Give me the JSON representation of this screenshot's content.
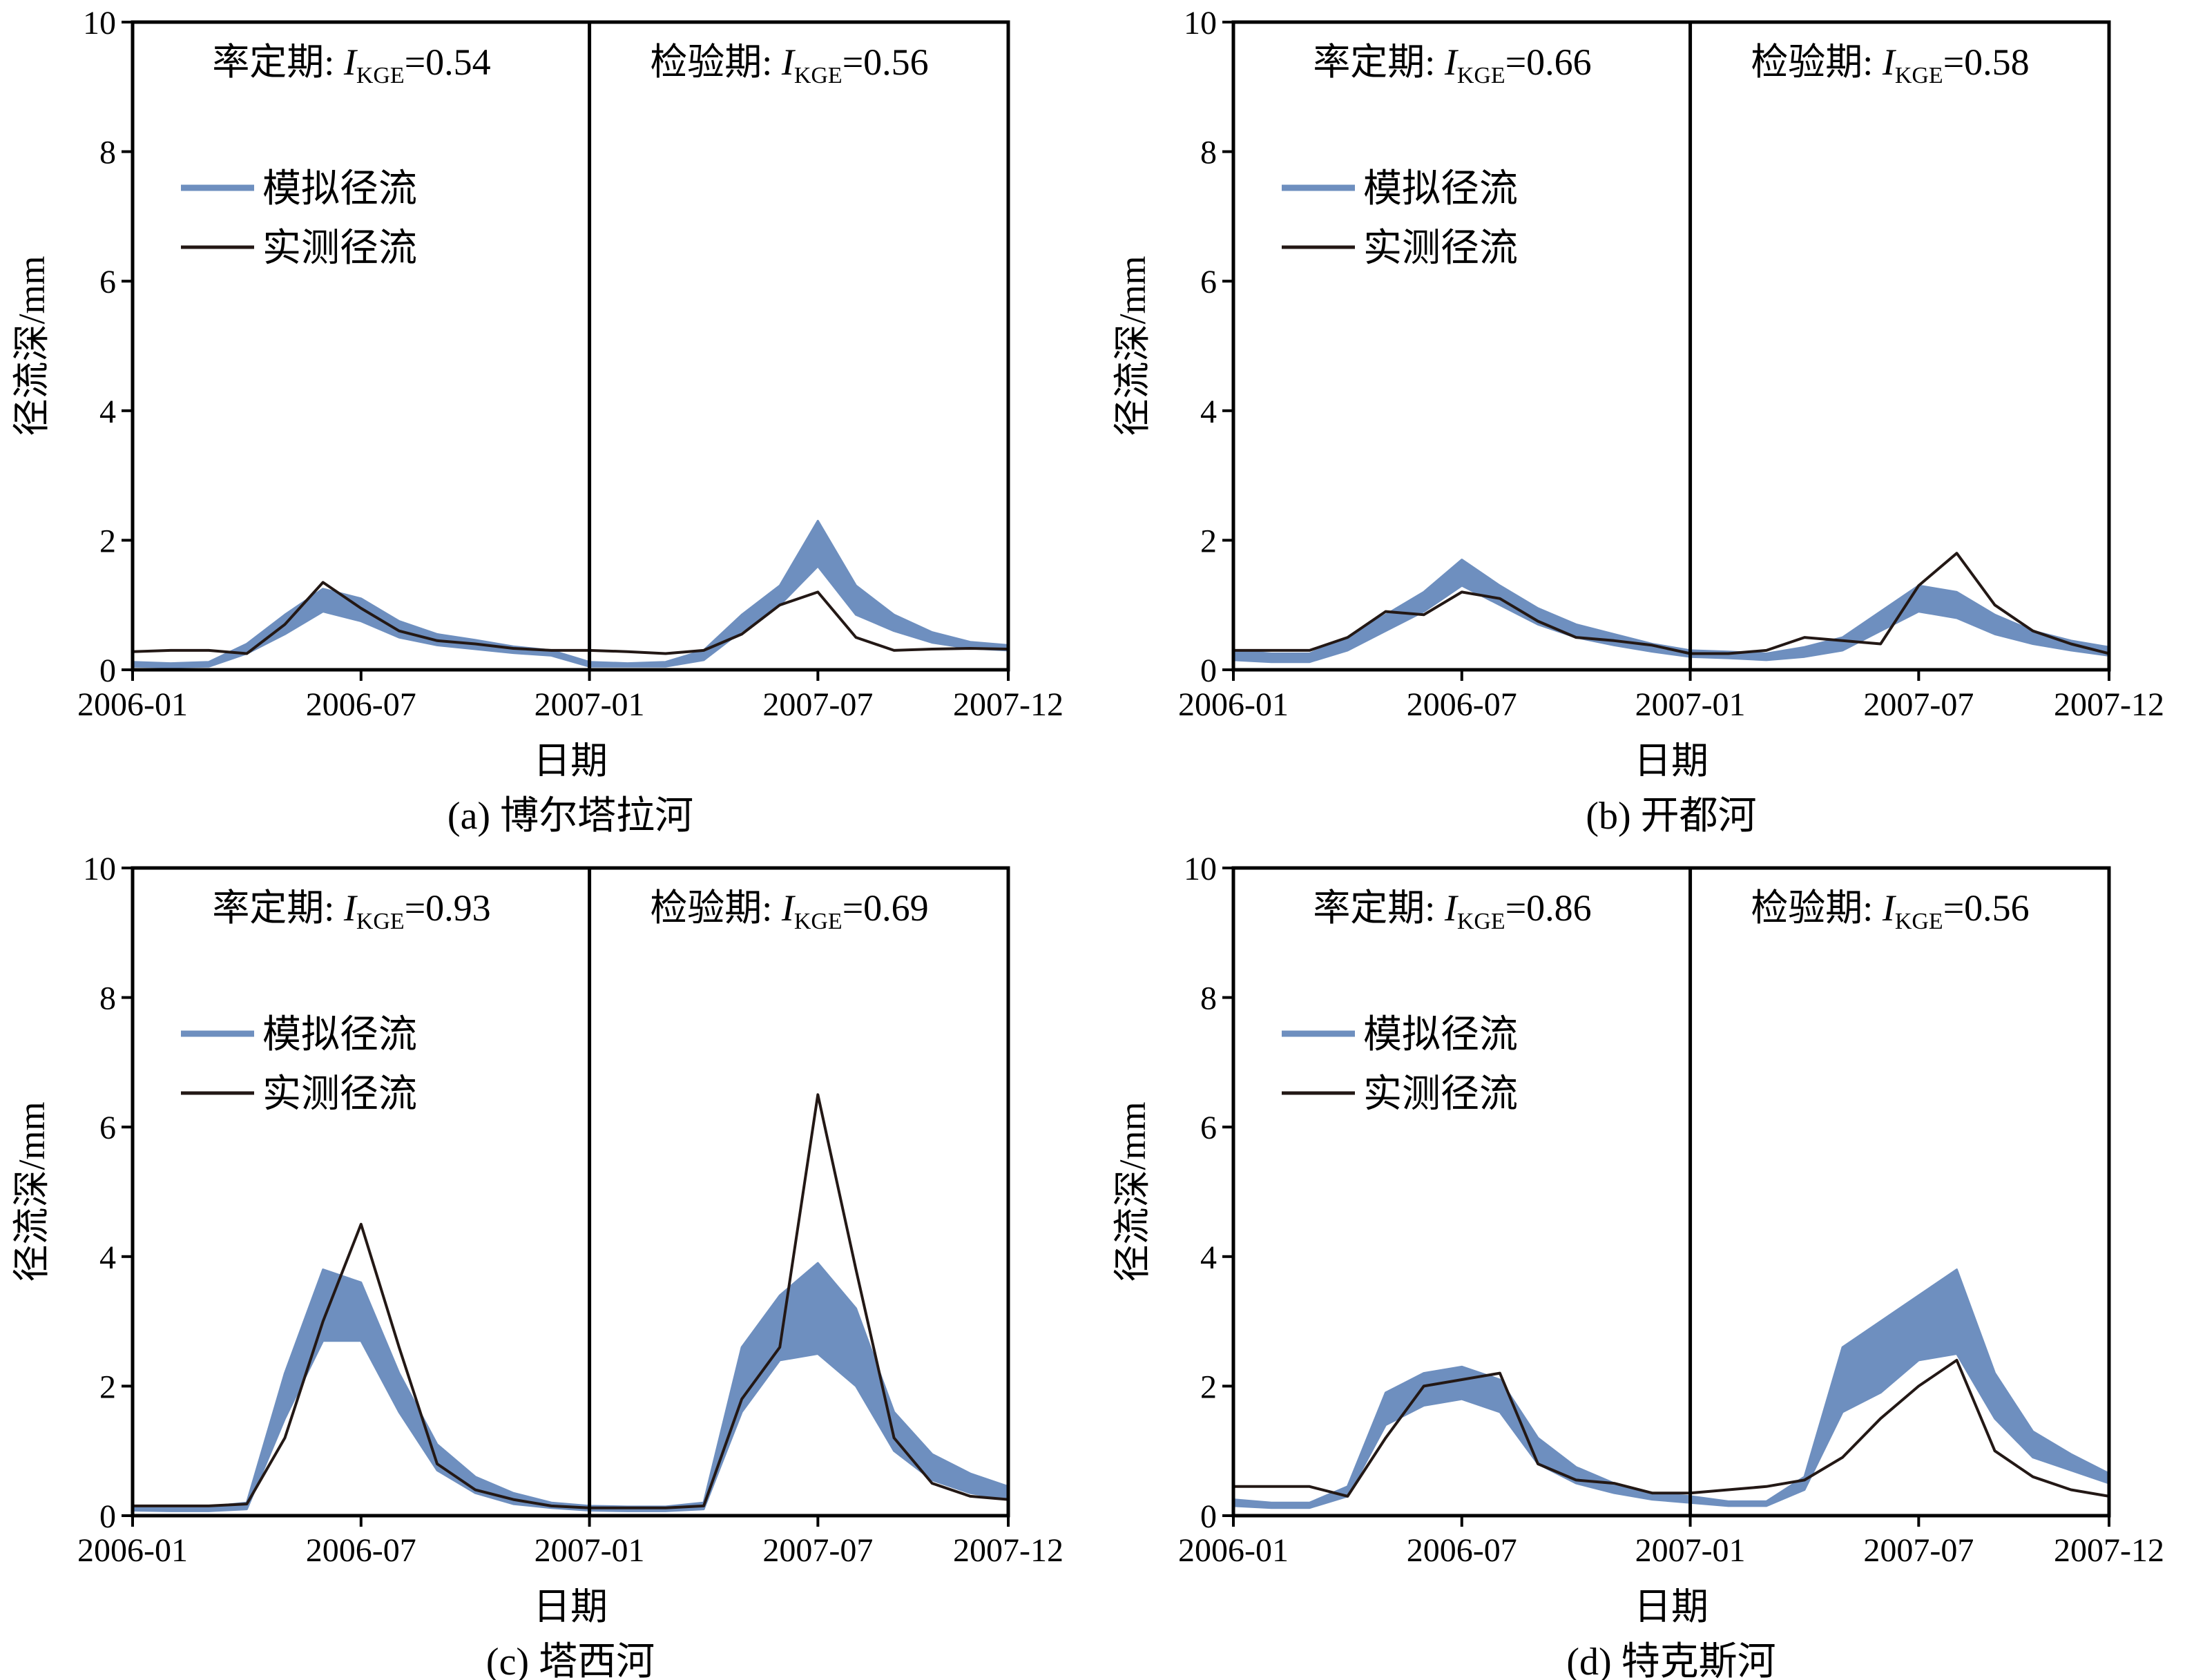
{
  "colors": {
    "simulated": "#6e8fbf",
    "observed": "#231815",
    "axis": "#000000"
  },
  "chart_data": [
    {
      "type": "line",
      "caption": "(a) 博尔塔拉河",
      "xlabel": "日期",
      "ylabel": "径流深/mm",
      "xticks": [
        "2006-01",
        "2006-07",
        "2007-01",
        "2007-07",
        "2007-12"
      ],
      "ylim": [
        0,
        10
      ],
      "yticks": [
        "0",
        "2",
        "4",
        "6",
        "8",
        "10"
      ],
      "periods": [
        {
          "label": "率定期: ",
          "metric_main": "I",
          "metric_sub": "KGE",
          "value": "=0.54"
        },
        {
          "label": "检验期: ",
          "metric_main": "I",
          "metric_sub": "KGE",
          "value": "=0.56"
        }
      ],
      "legend": [
        {
          "name": "模拟径流",
          "key": "simulated"
        },
        {
          "name": "实测径流",
          "key": "observed"
        }
      ],
      "x": [
        0,
        1,
        2,
        3,
        4,
        5,
        6,
        7,
        8,
        9,
        10,
        11,
        12,
        13,
        14,
        15,
        16,
        17,
        18,
        19,
        20,
        21,
        22,
        23
      ],
      "series": [
        {
          "key": "simulated",
          "band": true,
          "lower": [
            0.05,
            0.04,
            0.05,
            0.25,
            0.55,
            0.9,
            0.75,
            0.5,
            0.38,
            0.32,
            0.26,
            0.22,
            0.05,
            0.05,
            0.05,
            0.15,
            0.6,
            1.0,
            1.6,
            0.85,
            0.6,
            0.42,
            0.33,
            0.3
          ],
          "upper": [
            0.12,
            0.1,
            0.12,
            0.4,
            0.85,
            1.25,
            1.1,
            0.75,
            0.55,
            0.46,
            0.36,
            0.3,
            0.12,
            0.1,
            0.12,
            0.3,
            0.85,
            1.3,
            2.3,
            1.3,
            0.85,
            0.58,
            0.43,
            0.38
          ]
        },
        {
          "key": "observed",
          "values": [
            0.28,
            0.3,
            0.3,
            0.25,
            0.7,
            1.35,
            0.95,
            0.6,
            0.45,
            0.4,
            0.33,
            0.3,
            0.3,
            0.28,
            0.25,
            0.3,
            0.55,
            1.0,
            1.2,
            0.5,
            0.3,
            0.32,
            0.33,
            0.32
          ]
        }
      ]
    },
    {
      "type": "line",
      "caption": "(b) 开都河",
      "xlabel": "日期",
      "ylabel": "径流深/mm",
      "xticks": [
        "2006-01",
        "2006-07",
        "2007-01",
        "2007-07",
        "2007-12"
      ],
      "ylim": [
        0,
        10
      ],
      "yticks": [
        "0",
        "2",
        "4",
        "6",
        "8",
        "10"
      ],
      "periods": [
        {
          "label": "率定期: ",
          "metric_main": "I",
          "metric_sub": "KGE",
          "value": "=0.66"
        },
        {
          "label": "检验期: ",
          "metric_main": "I",
          "metric_sub": "KGE",
          "value": "=0.58"
        }
      ],
      "legend": [
        {
          "name": "模拟径流",
          "key": "simulated"
        },
        {
          "name": "实测径流",
          "key": "observed"
        }
      ],
      "x": [
        0,
        1,
        2,
        3,
        4,
        5,
        6,
        7,
        8,
        9,
        10,
        11,
        12,
        13,
        14,
        15,
        16,
        17,
        18,
        19,
        20,
        21,
        22,
        23
      ],
      "series": [
        {
          "key": "simulated",
          "band": true,
          "lower": [
            0.15,
            0.12,
            0.12,
            0.3,
            0.6,
            0.9,
            1.3,
            1.0,
            0.7,
            0.5,
            0.38,
            0.28,
            0.2,
            0.18,
            0.15,
            0.2,
            0.3,
            0.6,
            0.9,
            0.8,
            0.55,
            0.4,
            0.3,
            0.22
          ],
          "upper": [
            0.3,
            0.25,
            0.25,
            0.5,
            0.85,
            1.2,
            1.7,
            1.3,
            0.95,
            0.7,
            0.55,
            0.4,
            0.3,
            0.28,
            0.25,
            0.35,
            0.5,
            0.9,
            1.3,
            1.2,
            0.85,
            0.6,
            0.45,
            0.35
          ]
        },
        {
          "key": "observed",
          "values": [
            0.3,
            0.3,
            0.3,
            0.5,
            0.9,
            0.85,
            1.2,
            1.1,
            0.75,
            0.5,
            0.45,
            0.38,
            0.25,
            0.25,
            0.3,
            0.5,
            0.45,
            0.4,
            1.3,
            1.8,
            1.0,
            0.6,
            0.4,
            0.25
          ]
        }
      ]
    },
    {
      "type": "line",
      "caption": "(c) 塔西河",
      "xlabel": "日期",
      "ylabel": "径流深/mm",
      "xticks": [
        "2006-01",
        "2006-07",
        "2007-01",
        "2007-07",
        "2007-12"
      ],
      "ylim": [
        0,
        10
      ],
      "yticks": [
        "0",
        "2",
        "4",
        "6",
        "8",
        "10"
      ],
      "periods": [
        {
          "label": "率定期: ",
          "metric_main": "I",
          "metric_sub": "KGE",
          "value": "=0.93"
        },
        {
          "label": "检验期: ",
          "metric_main": "I",
          "metric_sub": "KGE",
          "value": "=0.69"
        }
      ],
      "legend": [
        {
          "name": "模拟径流",
          "key": "simulated"
        },
        {
          "name": "实测径流",
          "key": "observed"
        }
      ],
      "x": [
        0,
        1,
        2,
        3,
        4,
        5,
        6,
        7,
        8,
        9,
        10,
        11,
        12,
        13,
        14,
        15,
        16,
        17,
        18,
        19,
        20,
        21,
        22,
        23
      ],
      "series": [
        {
          "key": "simulated",
          "band": true,
          "lower": [
            0.08,
            0.07,
            0.07,
            0.1,
            1.5,
            2.7,
            2.7,
            1.6,
            0.7,
            0.35,
            0.18,
            0.12,
            0.08,
            0.07,
            0.07,
            0.1,
            1.6,
            2.4,
            2.5,
            2.0,
            1.0,
            0.55,
            0.35,
            0.25
          ],
          "upper": [
            0.15,
            0.14,
            0.14,
            0.2,
            2.2,
            3.8,
            3.6,
            2.2,
            1.1,
            0.6,
            0.35,
            0.2,
            0.15,
            0.14,
            0.14,
            0.2,
            2.6,
            3.4,
            3.9,
            3.2,
            1.6,
            0.95,
            0.65,
            0.45
          ]
        },
        {
          "key": "observed",
          "values": [
            0.15,
            0.15,
            0.15,
            0.18,
            1.2,
            3.0,
            4.5,
            2.6,
            0.8,
            0.4,
            0.25,
            0.15,
            0.12,
            0.12,
            0.12,
            0.15,
            1.8,
            2.6,
            6.5,
            3.8,
            1.2,
            0.5,
            0.3,
            0.25
          ]
        }
      ]
    },
    {
      "type": "line",
      "caption": "(d) 特克斯河",
      "xlabel": "日期",
      "ylabel": "径流深/mm",
      "xticks": [
        "2006-01",
        "2006-07",
        "2007-01",
        "2007-07",
        "2007-12"
      ],
      "ylim": [
        0,
        10
      ],
      "yticks": [
        "0",
        "2",
        "4",
        "6",
        "8",
        "10"
      ],
      "periods": [
        {
          "label": "率定期: ",
          "metric_main": "I",
          "metric_sub": "KGE",
          "value": "=0.86"
        },
        {
          "label": "检验期: ",
          "metric_main": "I",
          "metric_sub": "KGE",
          "value": "=0.56"
        }
      ],
      "legend": [
        {
          "name": "模拟径流",
          "key": "simulated"
        },
        {
          "name": "实测径流",
          "key": "observed"
        }
      ],
      "x": [
        0,
        1,
        2,
        3,
        4,
        5,
        6,
        7,
        8,
        9,
        10,
        11,
        12,
        13,
        14,
        15,
        16,
        17,
        18,
        19,
        20,
        21,
        22,
        23
      ],
      "series": [
        {
          "key": "simulated",
          "band": true,
          "lower": [
            0.15,
            0.12,
            0.12,
            0.3,
            1.4,
            1.7,
            1.8,
            1.6,
            0.8,
            0.5,
            0.35,
            0.25,
            0.2,
            0.15,
            0.15,
            0.4,
            1.6,
            1.9,
            2.4,
            2.5,
            1.5,
            0.9,
            0.7,
            0.5
          ],
          "upper": [
            0.25,
            0.2,
            0.2,
            0.45,
            1.9,
            2.2,
            2.3,
            2.1,
            1.2,
            0.75,
            0.5,
            0.35,
            0.3,
            0.22,
            0.22,
            0.6,
            2.6,
            3.0,
            3.4,
            3.8,
            2.2,
            1.3,
            0.95,
            0.65
          ]
        },
        {
          "key": "observed",
          "values": [
            0.45,
            0.45,
            0.45,
            0.3,
            1.2,
            2.0,
            2.1,
            2.2,
            0.8,
            0.55,
            0.5,
            0.35,
            0.35,
            0.4,
            0.45,
            0.55,
            0.9,
            1.5,
            2.0,
            2.4,
            1.0,
            0.6,
            0.4,
            0.3
          ]
        }
      ]
    }
  ]
}
